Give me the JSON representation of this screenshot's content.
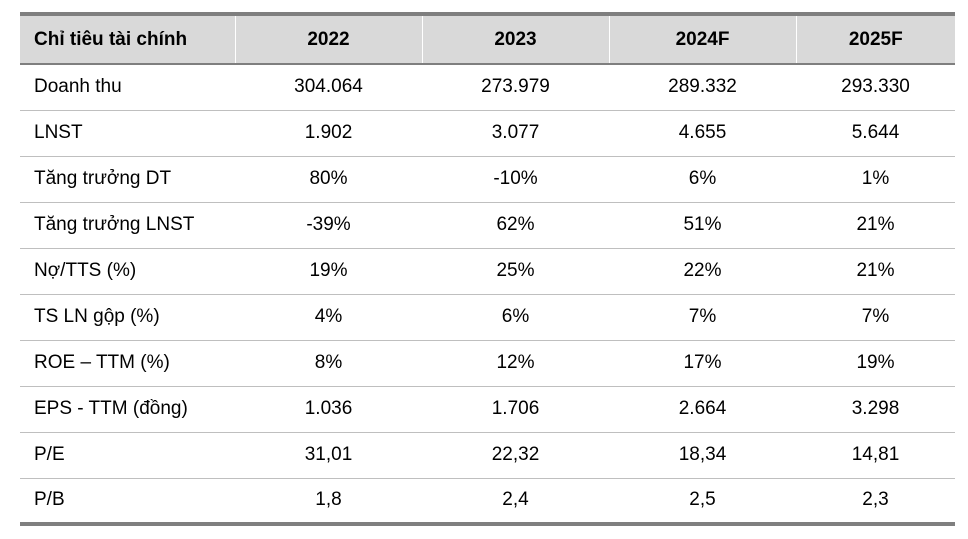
{
  "table": {
    "headers": [
      "Chỉ tiêu tài chính",
      "2022",
      "2023",
      "2024F",
      "2025F"
    ],
    "rows": [
      [
        "Doanh thu",
        "304.064",
        "273.979",
        "289.332",
        "293.330"
      ],
      [
        "LNST",
        "1.902",
        "3.077",
        "4.655",
        "5.644"
      ],
      [
        "Tăng trưởng DT",
        "80%",
        "-10%",
        "6%",
        "1%"
      ],
      [
        "Tăng trưởng LNST",
        "-39%",
        "62%",
        "51%",
        "21%"
      ],
      [
        "Nợ/TTS (%)",
        "19%",
        "25%",
        "22%",
        "21%"
      ],
      [
        "TS LN gộp (%)",
        "4%",
        "6%",
        "7%",
        "7%"
      ],
      [
        "ROE – TTM (%)",
        "8%",
        "12%",
        "17%",
        "19%"
      ],
      [
        "EPS - TTM (đồng)",
        "1.036",
        "1.706",
        "2.664",
        "3.298"
      ],
      [
        "P/E",
        "31,01",
        "22,32",
        "18,34",
        "14,81"
      ],
      [
        "P/B",
        "1,8",
        "2,4",
        "2,5",
        "2,3"
      ]
    ]
  },
  "colors": {
    "header_bg": "#d9d9d9",
    "rule_dark": "#7f7f7f",
    "rule_light": "#bfbfbf"
  }
}
